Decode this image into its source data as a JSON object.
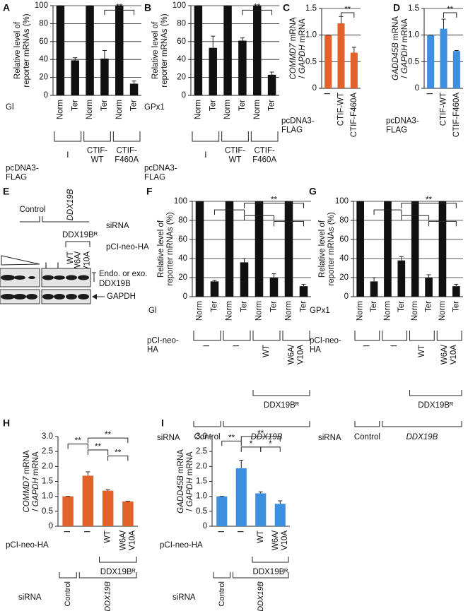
{
  "chart_data": [
    {
      "type": "bar",
      "panel": "A",
      "ylabel": [
        "Relative level of",
        "reporter mRNAs (%)"
      ],
      "ylim": [
        0,
        100
      ],
      "yticks": [
        0,
        20,
        40,
        60,
        80,
        100
      ],
      "grid": true,
      "color": "#111111",
      "categories": [
        "Norm",
        "Ter",
        "Norm",
        "Ter",
        "Norm",
        "Ter"
      ],
      "values": [
        100,
        39,
        100,
        41,
        100,
        13
      ],
      "errors": [
        0,
        3,
        0,
        9,
        0,
        3
      ],
      "row_label": "Gl",
      "groups": [
        "I",
        "CTIF-WT",
        "CTIF-F460A"
      ],
      "x_title": "pcDNA3-FLAG",
      "significance": [
        "**"
      ]
    },
    {
      "type": "bar",
      "panel": "B",
      "ylabel": [
        "Relative level of",
        "reporter mRNAs (%)"
      ],
      "ylim": [
        0,
        100
      ],
      "yticks": [
        0,
        20,
        40,
        60,
        80,
        100
      ],
      "grid": true,
      "color": "#111111",
      "categories": [
        "Norm",
        "Ter",
        "Norm",
        "Ter",
        "Norm",
        "Ter"
      ],
      "values": [
        100,
        53,
        100,
        61,
        100,
        23
      ],
      "errors": [
        0,
        13,
        0,
        3,
        0,
        3
      ],
      "row_label": "GPx1",
      "groups": [
        "I",
        "CTIF-WT",
        "CTIF-F460A"
      ],
      "x_title": "pcDNA3-FLAG",
      "significance": [
        "**"
      ]
    },
    {
      "type": "bar",
      "panel": "C",
      "ylabel": [
        "COMMD7 mRNA",
        "/ GAPDH mRNA"
      ],
      "ylim": [
        0,
        1.5
      ],
      "yticks": [
        0,
        0.5,
        {
          "value": 1,
          "label": "1.0"
        },
        1.5
      ],
      "grid": true,
      "color": "#e2622b",
      "categories": [
        "I",
        "CTIF-WT",
        "CTIF-F460A"
      ],
      "values": [
        1,
        1.22,
        0.67
      ],
      "errors": [
        0,
        0.13,
        0.1
      ],
      "x_title": "pcDNA3-FLAG",
      "significance": [
        "**"
      ]
    },
    {
      "type": "bar",
      "panel": "D",
      "ylabel": [
        "GADD45B mRNA",
        "/ GAPDH mRNA"
      ],
      "ylim": [
        0,
        1.5
      ],
      "yticks": [
        0,
        0.5,
        {
          "value": 1,
          "label": "1.0"
        },
        1.5
      ],
      "grid": true,
      "color": "#3d8fdf",
      "categories": [
        "I",
        "CTIF-WT",
        "CTIF-F460A"
      ],
      "values": [
        1,
        1.12,
        0.7
      ],
      "errors": [
        0,
        0.18,
        0.01
      ],
      "x_title": "pcDNA3-FLAG",
      "significance": [
        "**"
      ]
    },
    {
      "type": "bar",
      "panel": "F",
      "ylabel": [
        "Relative level of",
        "reporter mRNAs (%)"
      ],
      "ylim": [
        0,
        100
      ],
      "yticks": [
        0,
        20,
        40,
        60,
        80,
        100
      ],
      "grid": true,
      "color": "#111111",
      "categories": [
        "Norm",
        "Ter",
        "Norm",
        "Ter",
        "Norm",
        "Ter",
        "Norm",
        "Ter"
      ],
      "values": [
        100,
        16,
        100,
        36,
        100,
        20,
        100,
        11
      ],
      "errors": [
        0,
        1,
        0,
        4,
        0,
        4,
        0,
        2
      ],
      "row_label": "Gl",
      "groups": [
        "I",
        "I",
        "WT",
        "W6A/V10A"
      ],
      "x_title": "pCI-neo-HA",
      "rescue_label": "DDX19Bᴿ",
      "sirna_title": "siRNA",
      "sirna_labels": [
        "Control",
        "DDX19B"
      ],
      "significance": [
        "**",
        "**",
        "*",
        "*"
      ]
    },
    {
      "type": "bar",
      "panel": "G",
      "ylabel": [
        "Relative level of",
        "reporter mRNAs (%)"
      ],
      "ylim": [
        0,
        100
      ],
      "yticks": [
        0,
        20,
        40,
        60,
        80,
        100
      ],
      "grid": true,
      "color": "#111111",
      "categories": [
        "Norm",
        "Ter",
        "Norm",
        "Ter",
        "Norm",
        "Ter",
        "Norm",
        "Ter"
      ],
      "values": [
        100,
        16,
        100,
        38,
        100,
        20,
        100,
        11
      ],
      "errors": [
        0,
        4,
        0,
        4,
        0,
        3,
        0,
        2
      ],
      "row_label": "GPx1",
      "groups": [
        "I",
        "I",
        "WT",
        "W6A/V10A"
      ],
      "x_title": "pCI-neo-HA",
      "rescue_label": "DDX19Bᴿ",
      "sirna_title": "siRNA",
      "sirna_labels": [
        "Control",
        "DDX19B"
      ],
      "significance": [
        "*",
        "**",
        "*",
        "*"
      ]
    },
    {
      "type": "bar",
      "panel": "H",
      "ylabel": [
        "COMMD7 mRNA",
        "/ GAPDH mRNA"
      ],
      "ylim": [
        0,
        3
      ],
      "yticks": [
        0,
        0.5,
        {
          "value": 1,
          "label": "1.0"
        },
        1.5,
        {
          "value": 2,
          "label": "2.0"
        },
        2.5,
        {
          "value": 3,
          "label": "3.0"
        }
      ],
      "grid": false,
      "color": "#e2622b",
      "categories": [
        "I",
        "I",
        "WT",
        "W6A/V10A"
      ],
      "values": [
        1,
        1.69,
        1.19,
        0.83
      ],
      "errors": [
        0,
        0.13,
        0.03,
        0.01
      ],
      "x_title": "pCI-neo-HA",
      "rescue_label": "DDX19Bᴿ",
      "sirna_title": "siRNA",
      "sirna_labels": [
        "Control",
        "DDX19B"
      ],
      "significance": [
        "**",
        "**",
        "**",
        "**"
      ]
    },
    {
      "type": "bar",
      "panel": "I",
      "ylabel": [
        "GADD45B mRNA",
        "/ GAPDH mRNA"
      ],
      "ylim": [
        0,
        3
      ],
      "yticks": [
        0,
        0.5,
        {
          "value": 1,
          "label": "1.0"
        },
        1.5,
        {
          "value": 2,
          "label": "2.0"
        },
        2.5,
        {
          "value": 3,
          "label": "3.0"
        }
      ],
      "grid": false,
      "color": "#3d8fdf",
      "categories": [
        "I",
        "I",
        "WT",
        "W6A/V10A"
      ],
      "values": [
        1,
        1.94,
        1.1,
        0.75
      ],
      "errors": [
        0,
        0.27,
        0.05,
        0.1
      ],
      "x_title": "pCI-neo-HA",
      "rescue_label": "DDX19Bᴿ",
      "sirna_title": "siRNA",
      "sirna_labels": [
        "Control",
        "DDX19B"
      ],
      "significance": [
        "**",
        "**",
        "*",
        "*"
      ]
    }
  ],
  "blot": {
    "panel": "E",
    "sirna_title": "siRNA",
    "sirna_labels": [
      "Control",
      "DDX19B"
    ],
    "rescue_label": "DDX19Bᴿ",
    "plasmid_title": "pCI-neo-HA",
    "plasmid_labels": [
      "I",
      "I",
      "WT",
      "W6A/V10A"
    ],
    "target_label": [
      "Endo. or exo.",
      "DDX19B"
    ],
    "control_label": "GAPDH"
  }
}
